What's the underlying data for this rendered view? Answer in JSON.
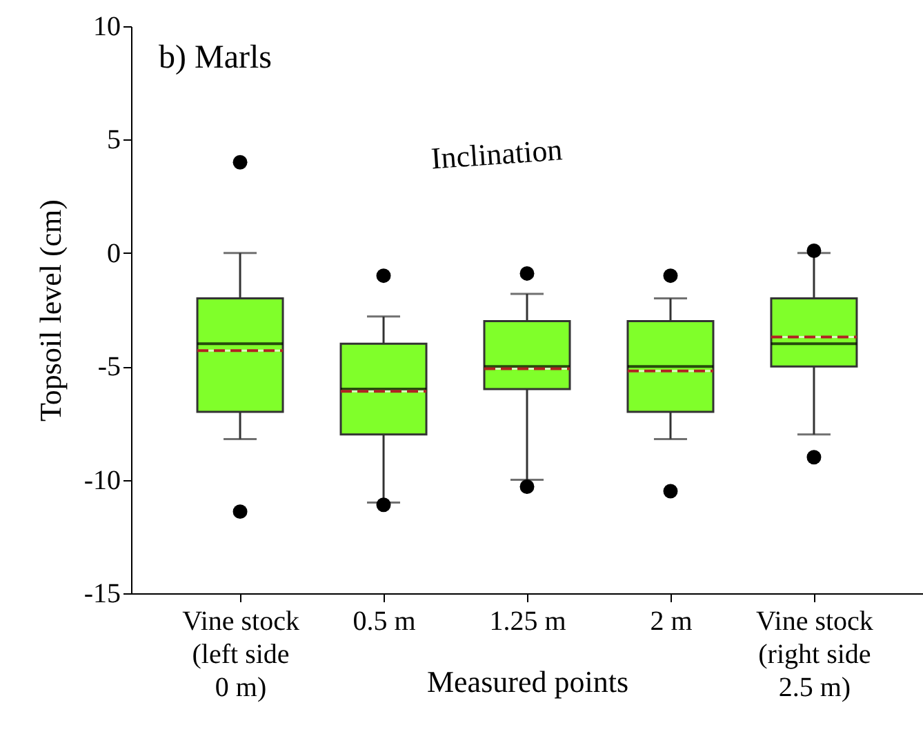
{
  "chart_data": {
    "type": "box",
    "title": "b) Marls",
    "xlabel": "Measured points",
    "ylabel": "Topsoil level (cm)",
    "categories": [
      "Vine stock\n(left side\n0 m)",
      "0.5 m",
      "1.25 m",
      "2 m",
      "Vine stock\n(right side\n2.5 m)"
    ],
    "series": [
      {
        "color": "#80ff2a",
        "boxes": [
          {
            "low": -8.2,
            "q1": -7,
            "median": -4,
            "q3": -2,
            "high": 0,
            "mean": -4.3,
            "outliers": [
              4.0,
              -11.4
            ]
          },
          {
            "low": -11.0,
            "q1": -8,
            "median": -6,
            "q3": -4,
            "high": -2.8,
            "mean": -6.1,
            "outliers": [
              -1.0,
              -11.1
            ]
          },
          {
            "low": -10,
            "q1": -6,
            "median": -5,
            "q3": -3,
            "high": -1.8,
            "mean": -5.1,
            "outliers": [
              -0.9,
              -10.3
            ]
          },
          {
            "low": -8.2,
            "q1": -7,
            "median": -5,
            "q3": -3,
            "high": -2,
            "mean": -5.2,
            "outliers": [
              -1.0,
              -10.5
            ]
          },
          {
            "low": -8,
            "q1": -5,
            "median": -4,
            "q3": -2,
            "high": 0,
            "mean": -3.7,
            "outliers": [
              0.1,
              -9.0
            ]
          }
        ]
      }
    ],
    "ylim": [
      -15,
      10
    ],
    "yticks": [
      -15,
      -10,
      -5,
      0,
      5,
      10
    ],
    "grid": false,
    "annotations": [
      "Inclination"
    ]
  }
}
